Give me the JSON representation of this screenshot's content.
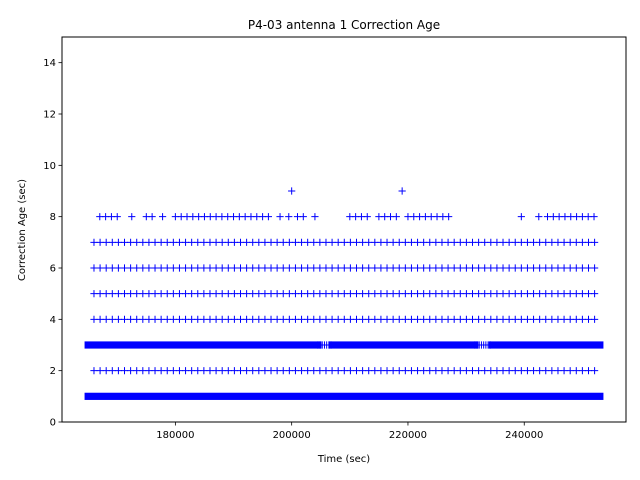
{
  "chart_data": {
    "type": "scatter",
    "title": "P4-03 antenna 1 Correction Age",
    "xlabel": "Time (sec)",
    "ylabel": "Correction Age (sec)",
    "xlim": [
      160500,
      257500
    ],
    "ylim": [
      0,
      15
    ],
    "xticks": [
      180000,
      200000,
      220000,
      240000
    ],
    "xtick_labels": [
      "180000",
      "200000",
      "220000",
      "240000"
    ],
    "yticks": [
      0,
      2,
      4,
      6,
      8,
      10,
      12,
      14
    ],
    "ytick_labels": [
      "0",
      "2",
      "4",
      "6",
      "8",
      "10",
      "12",
      "14"
    ],
    "marker": "+",
    "color": "#0000ff",
    "grid": false,
    "legend": "none",
    "x_range_of_data": [
      165000,
      253000
    ],
    "series": [
      {
        "values_summary": "dense continuous band of samples at correction age 1 and 3 across the full time range",
        "bands": [
          {
            "y": 1,
            "segments": [
              [
                165000,
                253000
              ]
            ],
            "density": "continuous"
          },
          {
            "y": 3,
            "segments": [
              [
                165000,
                204500
              ],
              [
                207000,
                231500
              ],
              [
                234500,
                253000
              ]
            ],
            "density": "continuous"
          },
          {
            "y": 3,
            "segments": [
              [
                204500,
                207000
              ],
              [
                231500,
                234500
              ]
            ],
            "density": "sparse"
          },
          {
            "y": 2,
            "segments": [
              [
                166000,
                253000
              ]
            ],
            "density": "sparse"
          },
          {
            "y": 4,
            "segments": [
              [
                166000,
                253000
              ]
            ],
            "density": "sparse"
          },
          {
            "y": 5,
            "segments": [
              [
                166000,
                253000
              ]
            ],
            "density": "sparse"
          },
          {
            "y": 6,
            "segments": [
              [
                166000,
                253000
              ]
            ],
            "density": "sparse"
          },
          {
            "y": 7,
            "segments": [
              [
                166000,
                253000
              ]
            ],
            "density": "sparse"
          }
        ],
        "points_y8": [
          167000,
          168000,
          169000,
          170000,
          172500,
          175000,
          176000,
          177800,
          180000,
          181000,
          182000,
          183000,
          184000,
          185000,
          186000,
          187000,
          188000,
          189000,
          190000,
          191000,
          192000,
          193000,
          194000,
          195000,
          196000,
          198000,
          199500,
          201000,
          202000,
          204000,
          210000,
          211000,
          212000,
          213000,
          215000,
          216000,
          217000,
          218000,
          220000,
          221000,
          222000,
          223000,
          224000,
          225000,
          226000,
          227000,
          239500,
          242500,
          244000,
          245000,
          246000,
          247000,
          248000,
          249000,
          250000,
          251000,
          252000
        ],
        "points_y9": [
          200000,
          219000
        ]
      }
    ]
  }
}
